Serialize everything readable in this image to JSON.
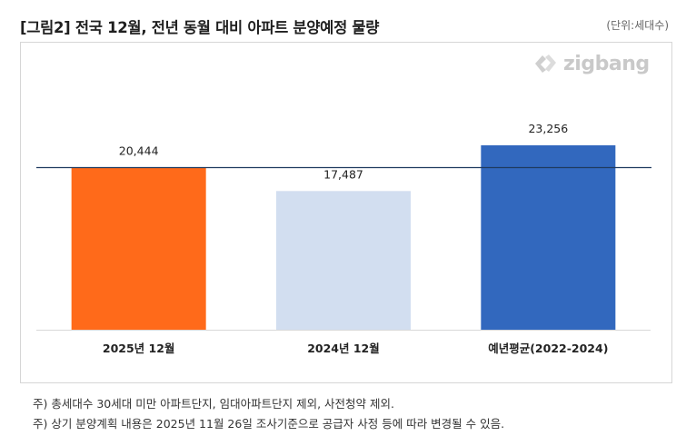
{
  "title": "[그림2] 전국 12월, 전년 동월 대비 아파트 분양예정 물량",
  "unit_label": "(단위:세대수)",
  "logo": {
    "text": "zigbang",
    "icon": "zigbang-logo-icon"
  },
  "chart_data": {
    "type": "bar",
    "title": "[그림2] 전국 12월, 전년 동월 대비 아파트 분양예정 물량",
    "xlabel": "",
    "ylabel": "",
    "categories": [
      "2025년 12월",
      "2024년 12월",
      "예년평균(2022-2024)"
    ],
    "values": [
      20444,
      17487,
      23256
    ],
    "value_labels": [
      "20,444",
      "17,487",
      "23,256"
    ],
    "bar_colors": [
      "#ff6a1a",
      "#d2def0",
      "#3268be"
    ],
    "reference_value": 20444,
    "reference_color": "#1f3a5f",
    "ylim": [
      0,
      34700
    ],
    "grid": false,
    "legend": "none"
  },
  "notes": [
    "주) 총세대수 30세대 미만 아파트단지, 임대아파트단지 제외, 사전청약 제외.",
    "주) 상기 분양계획 내용은 2025년 11월 26일 조사기준으로 공급자 사정 등에 따라 변경될 수 있음."
  ]
}
